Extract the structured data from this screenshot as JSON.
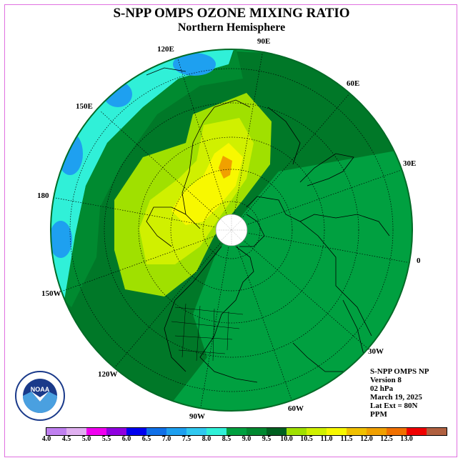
{
  "title": "S-NPP OMPS OZONE MIXING RATIO",
  "subtitle": "Northern Hemisphere",
  "longitude_labels": {
    "e90": "90E",
    "e120": "120E",
    "e60": "60E",
    "e150": "150E",
    "e30": "30E",
    "d180": "180",
    "d0": "0",
    "w150": "150W",
    "w30": "30W",
    "w120": "120W",
    "w60": "60W",
    "w90": "90W"
  },
  "info": {
    "instrument": "S-NPP OMPS NP",
    "version": "Version 8",
    "level": "02 hPa",
    "date": "March 19, 2025",
    "lat_ext": "Lat Ext = 80N",
    "units": "PPM"
  },
  "logo": {
    "text": "NOAA"
  },
  "colorbar": {
    "labels": [
      "4.0",
      "4.5",
      "5.0",
      "5.5",
      "6.0",
      "6.5",
      "7.0",
      "7.5",
      "8.0",
      "8.5",
      "9.0",
      "9.5",
      "10.0",
      "10.5",
      "11.0",
      "11.5",
      "12.0",
      "12.5",
      "13.0"
    ],
    "colors": [
      "#c080f0",
      "#e0b0f0",
      "#f000f0",
      "#9000e0",
      "#0000f0",
      "#1070e8",
      "#1ea0f0",
      "#30c8f0",
      "#30f0d8",
      "#00a040",
      "#008830",
      "#006020",
      "#a0e000",
      "#d0f000",
      "#f8f800",
      "#f0c000",
      "#f0a000",
      "#f07000",
      "#f00000",
      "#b06040"
    ]
  },
  "map_colors": {
    "bg_green": "#00a040",
    "dark_green": "#007828",
    "green2": "#008a30",
    "lime": "#a0e000",
    "yellow_green": "#d0f000",
    "yellow": "#f8f800",
    "orange": "#f0a000",
    "cyan": "#30f0d8",
    "light_blue": "#30c8f0",
    "blue": "#1ea0f0"
  }
}
